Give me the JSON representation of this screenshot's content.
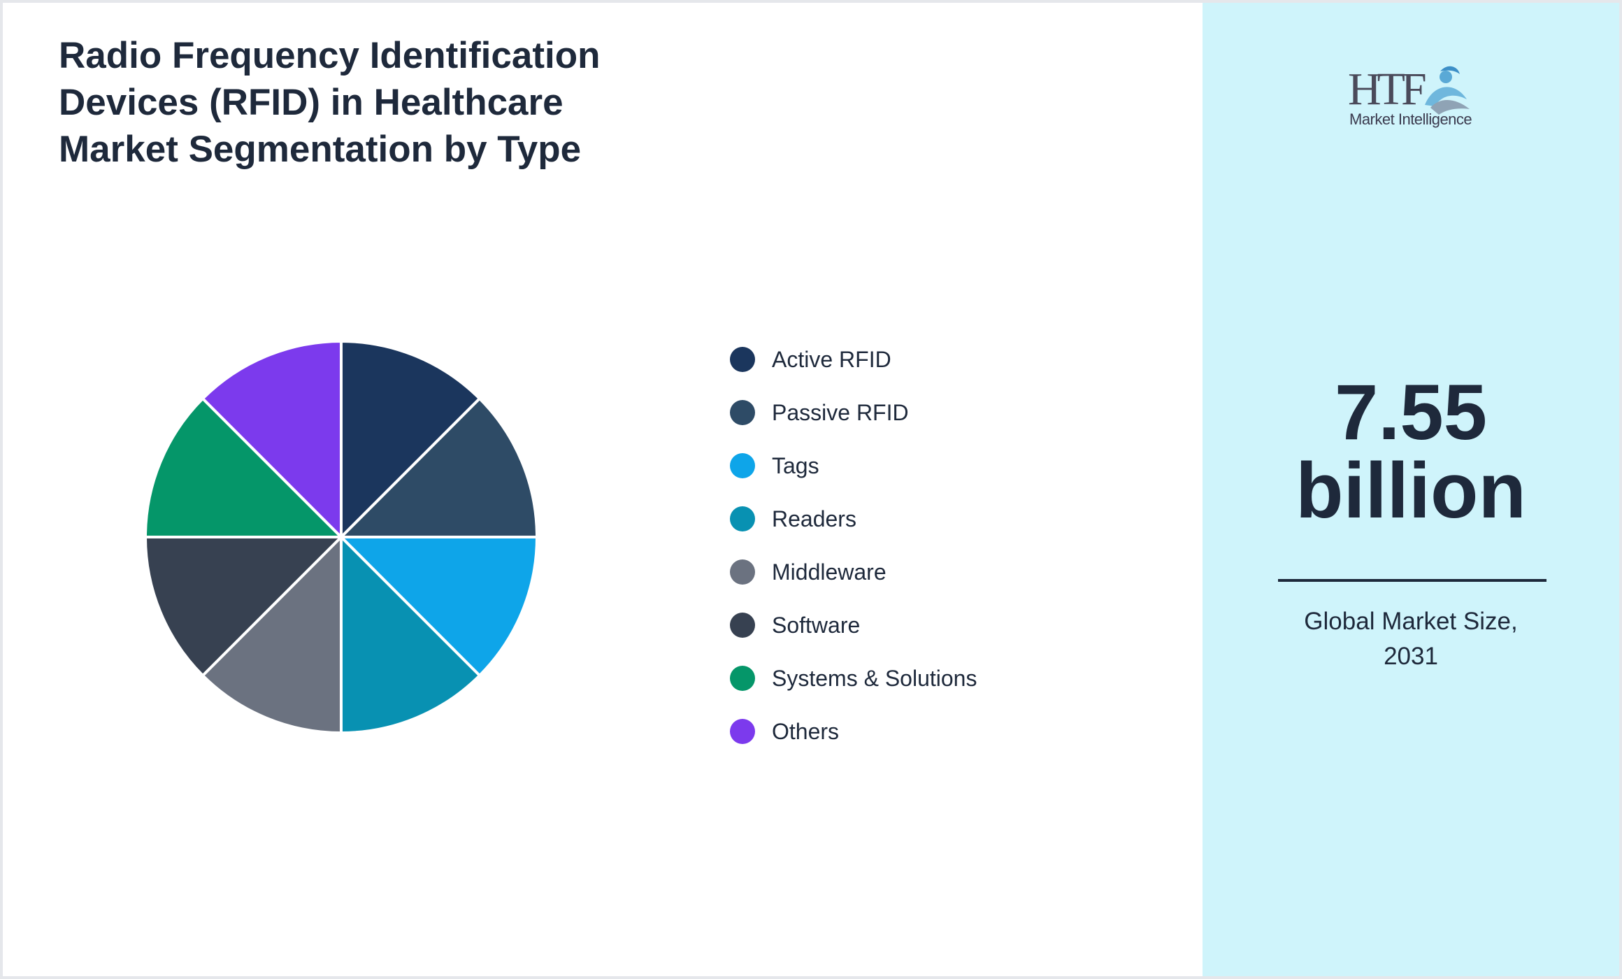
{
  "title": "Radio Frequency Identification Devices (RFID) in Healthcare Market Segmentation by Type",
  "logo": {
    "mark": "HTF",
    "text": "Market Intelligence"
  },
  "kpi": {
    "value_line1": "7.55",
    "value_line2": "billion",
    "caption_line1": "Global Market Size,",
    "caption_line2": "2031"
  },
  "chart_data": {
    "type": "pie",
    "title": "Radio Frequency Identification Devices (RFID) in Healthcare Market Segmentation by Type",
    "legend_position": "right",
    "categories": [
      "Active RFID",
      "Passive RFID",
      "Tags",
      "Readers",
      "Middleware",
      "Software",
      "Systems & Solutions",
      "Others"
    ],
    "values": [
      12.5,
      12.5,
      12.5,
      12.5,
      12.5,
      12.5,
      12.5,
      12.5
    ],
    "colors": [
      "#1b365d",
      "#2e4b66",
      "#0ea5e9",
      "#0891b2",
      "#6b7280",
      "#374151",
      "#059669",
      "#7c3aed"
    ]
  }
}
